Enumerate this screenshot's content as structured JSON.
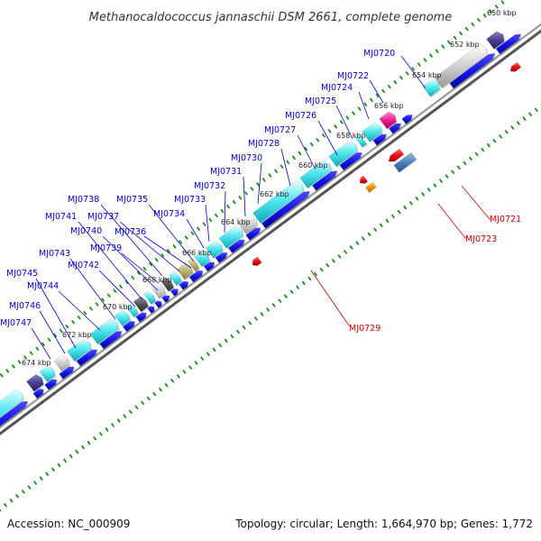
{
  "title": "Methanocaldococcus jannaschii DSM 2661, complete genome",
  "footer": {
    "accession": "Accession: NC_000909",
    "topology": "Topology: circular; Length: 1,664,970 bp; Genes: 1,772"
  },
  "colors": {
    "forward_label": "#0000cc",
    "reverse_label": "#cc0000",
    "tick_green": "#1a8a1a",
    "backbone": "#777777"
  },
  "kbp_ticks": [
    "650 kbp",
    "652 kbp",
    "654 kbp",
    "656 kbp",
    "658 kbp",
    "660 kbp",
    "662 kbp",
    "664 kbp",
    "666 kbp",
    "668 kbp",
    "670 kbp",
    "672 kbp",
    "674 kbp"
  ],
  "forward_labels": [
    "MJ0720",
    "MJ0722",
    "MJ0724",
    "MJ0725",
    "MJ0726",
    "MJ0727",
    "MJ0728",
    "MJ0730",
    "MJ0731",
    "MJ0732",
    "MJ0733",
    "MJ0734",
    "MJ0735",
    "MJ0736",
    "MJ0737",
    "MJ0738",
    "MJ0739",
    "MJ0740",
    "MJ0741",
    "MJ0742",
    "MJ0743",
    "MJ0744",
    "MJ0745",
    "MJ0746",
    "MJ0747"
  ],
  "reverse_labels": [
    "MJ0721",
    "MJ0723",
    "MJ0729"
  ]
}
